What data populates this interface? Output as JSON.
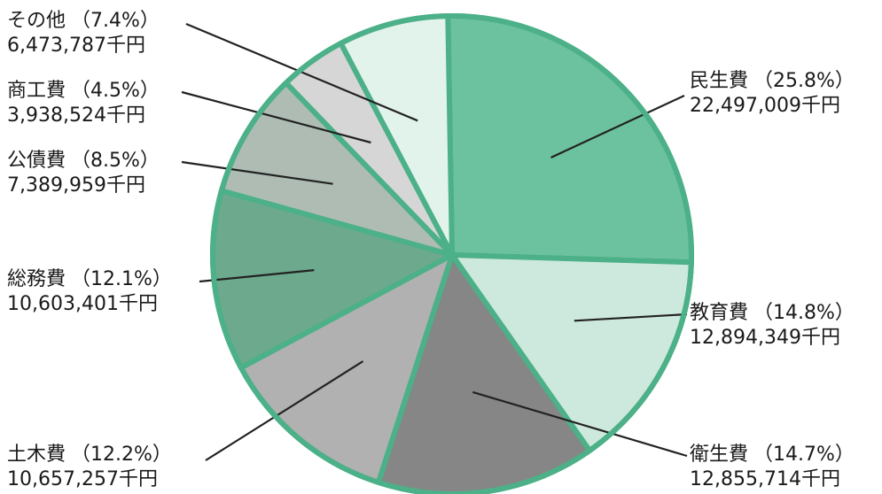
{
  "chart_data": {
    "type": "pie",
    "unit": "千円",
    "slices": [
      {
        "label": "民生費",
        "percent": "25.8%",
        "value": 22497009,
        "amount_text": "22,497,009千円",
        "color": "#6cc29e"
      },
      {
        "label": "教育費",
        "percent": "14.8%",
        "value": 12894349,
        "amount_text": "12,894,349千円",
        "color": "#cde8dc"
      },
      {
        "label": "衛生費",
        "percent": "14.7%",
        "value": 12855714,
        "amount_text": "12,855,714千円",
        "color": "#868686"
      },
      {
        "label": "土木費",
        "percent": "12.2%",
        "value": 10657257,
        "amount_text": "10,657,257千円",
        "color": "#b1b1b1"
      },
      {
        "label": "総務費",
        "percent": "12.1%",
        "value": 10603401,
        "amount_text": "10,603,401千円",
        "color": "#6da98d"
      },
      {
        "label": "公債費",
        "percent": "8.5%",
        "value": 7389959,
        "amount_text": "7,389,959千円",
        "color": "#aebcb4"
      },
      {
        "label": "商工費",
        "percent": "4.5%",
        "value": 3938524,
        "amount_text": "3,938,524千円",
        "color": "#d6d6d6"
      },
      {
        "label": "その他",
        "percent": "7.4%",
        "value": 6473787,
        "amount_text": "6,473,787千円",
        "color": "#e2f3ec"
      }
    ],
    "outline_color": "#4cb088"
  }
}
